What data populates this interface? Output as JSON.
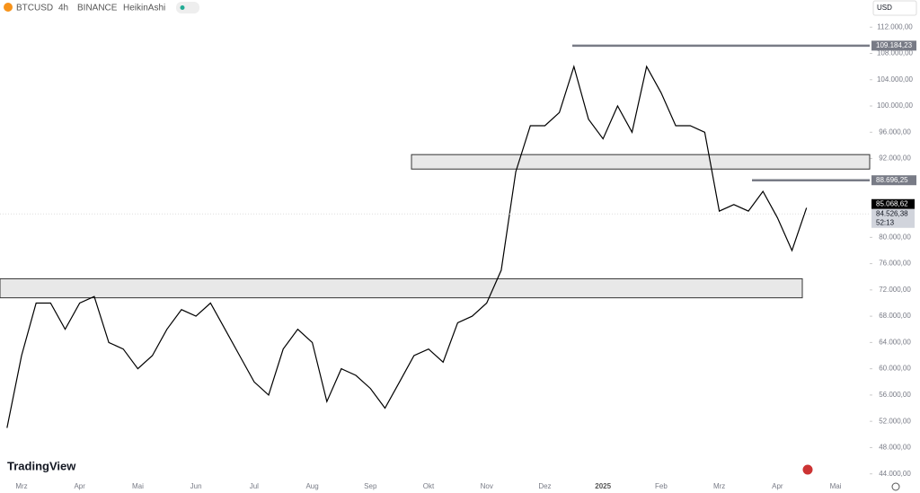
{
  "chart_data": {
    "type": "line",
    "symbol": "BTCUSD",
    "interval": "4h",
    "exchange": "BINANCE",
    "style": "HeikinAshi",
    "currency": "USD",
    "brand": "TradingView",
    "color": "#000000",
    "categories": [
      null,
      "Mrz",
      null,
      null,
      null,
      "Apr",
      null,
      null,
      null,
      "Mai",
      null,
      null,
      null,
      "Jun",
      null,
      null,
      null,
      "Jul",
      null,
      null,
      null,
      "Aug",
      null,
      null,
      null,
      "Sep",
      null,
      null,
      null,
      "Okt",
      null,
      null,
      null,
      "Nov",
      null,
      null,
      null,
      "Dez",
      null,
      null,
      null,
      "2025",
      null,
      null,
      null,
      "Feb",
      null,
      null,
      null,
      "Mrz",
      null,
      null,
      null,
      "Apr",
      null,
      null,
      null,
      "Mai"
    ],
    "values": [
      51000,
      62000,
      70000,
      70000,
      66000,
      70000,
      71000,
      64000,
      63000,
      60000,
      62000,
      66000,
      69000,
      68000,
      70000,
      66000,
      62000,
      58000,
      56000,
      63000,
      66000,
      64000,
      55000,
      60000,
      59000,
      57000,
      54000,
      58000,
      62000,
      63000,
      61000,
      67000,
      68000,
      70000,
      75000,
      90000,
      97000,
      97000,
      99000,
      106000,
      98000,
      95000,
      100000,
      96000,
      106000,
      102000,
      97000,
      97000,
      96000,
      84000,
      85000,
      84000,
      87000,
      83000,
      78000,
      84500,
      null,
      null
    ],
    "ylim": [
      43000,
      113400
    ],
    "yticks": [
      {
        "value": 112000,
        "label": "112.000,00"
      },
      {
        "value": 108000,
        "label": "108.000,00"
      },
      {
        "value": 104000,
        "label": "104.000,00"
      },
      {
        "value": 100000,
        "label": "100.000,00"
      },
      {
        "value": 96000,
        "label": "96.000,00"
      },
      {
        "value": 92000,
        "label": "92.000,00"
      },
      {
        "value": 80000,
        "label": "80.000,00"
      },
      {
        "value": 76000,
        "label": "76.000,00"
      },
      {
        "value": 72000,
        "label": "72.000,00"
      },
      {
        "value": 68000,
        "label": "68.000,00"
      },
      {
        "value": 64000,
        "label": "64.000,00"
      },
      {
        "value": 60000,
        "label": "60.000,00"
      },
      {
        "value": 56000,
        "label": "56.000,00"
      },
      {
        "value": 52000,
        "label": "52.000,00"
      },
      {
        "value": 48000,
        "label": "48.000,00"
      },
      {
        "value": 44000,
        "label": "44.000,00"
      }
    ],
    "levels": [
      {
        "value": 109184.23,
        "label": "109.184,23"
      },
      {
        "value": 88696.25,
        "label": "88.696,25"
      }
    ],
    "zones": [
      [
        90400,
        92600
      ],
      [
        70800,
        73700
      ]
    ],
    "last_price": {
      "value": 85068.62,
      "label": "85.068,62"
    },
    "close_price": {
      "value": 84526.38,
      "label": "84.526,38"
    },
    "countdown": "52:13",
    "log_scale": false
  }
}
